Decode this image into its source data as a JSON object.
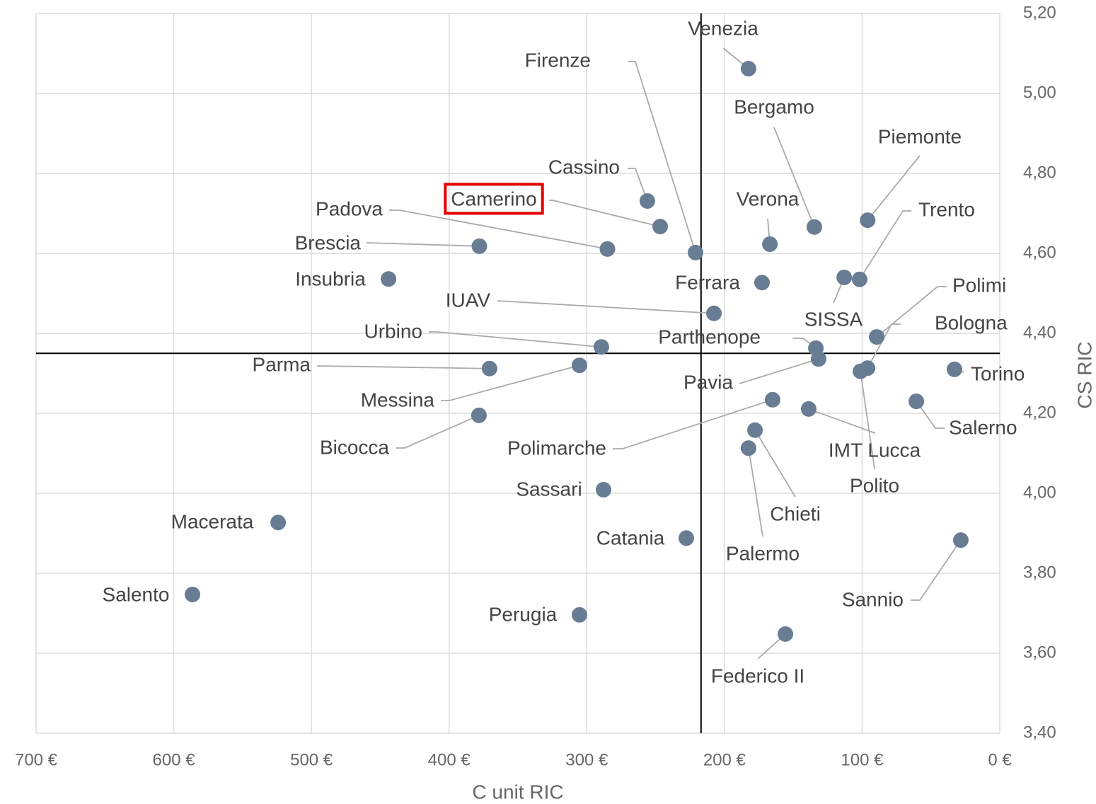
{
  "chart_data": {
    "type": "scatter",
    "x_label": "C unit RIC",
    "y_label": "CS RIC",
    "labels": [
      "Venezia",
      "Firenze",
      "Bergamo",
      "Piemonte",
      "Cassino",
      "Camerino",
      "Verona",
      "Trento",
      "Padova",
      "Brescia",
      "Insubria",
      "Ferrara",
      "SISSA",
      "Polimi",
      "Bologna",
      "IUAV",
      "Urbino",
      "Parthenope",
      "Pavia",
      "Torino",
      "Parma",
      "Messina",
      "Polito",
      "Bicocca",
      "Polimarche",
      "IMT Lucca",
      "Salerno",
      "Chieti",
      "Palermo",
      "Sassari",
      "Macerata",
      "Catania",
      "Sannio",
      "Salento",
      "Perugia",
      "Federico II"
    ],
    "x": [
      182.5,
      221,
      134.7,
      96,
      256,
      246.7,
      167,
      101.8,
      285,
      378,
      444,
      172.7,
      113,
      89.4,
      96.1,
      207.6,
      289.4,
      133.6,
      131.6,
      32.9,
      370.6,
      305.3,
      101.2,
      378.3,
      165,
      138.8,
      60.6,
      177.8,
      182.5,
      287.8,
      524.2,
      227.7,
      28.3,
      586.4,
      305.3,
      155.7
    ],
    "values": [
      5.062,
      4.602,
      4.666,
      4.683,
      4.731,
      4.667,
      4.623,
      4.535,
      4.611,
      4.618,
      4.536,
      4.527,
      4.54,
      4.391,
      4.313,
      4.45,
      4.366,
      4.363,
      4.336,
      4.31,
      4.312,
      4.32,
      4.305,
      4.195,
      4.234,
      4.211,
      4.23,
      4.158,
      4.113,
      4.009,
      3.927,
      3.888,
      3.883,
      3.747,
      3.696,
      3.648
    ],
    "color": "#687d94",
    "highlight_index": 5,
    "highlight_color": "#e30000",
    "xlim": [
      700,
      0
    ],
    "xticks": [
      {
        "value": 700,
        "label": "700 €"
      },
      {
        "value": 600,
        "label": "600 €"
      },
      {
        "value": 500,
        "label": "500 €"
      },
      {
        "value": 400,
        "label": "400 €"
      },
      {
        "value": 300,
        "label": "300 €"
      },
      {
        "value": 200,
        "label": "200 €"
      },
      {
        "value": 100,
        "label": "100 €"
      },
      {
        "value": 0,
        "label": "0 €"
      }
    ],
    "ylim": [
      3.4,
      5.2
    ],
    "yticks": [
      {
        "value": 3.4,
        "label": "3,40"
      },
      {
        "value": 3.6,
        "label": "3,60"
      },
      {
        "value": 3.8,
        "label": "3,80"
      },
      {
        "value": 4.0,
        "label": "4,00"
      },
      {
        "value": 4.2,
        "label": "4,20"
      },
      {
        "value": 4.4,
        "label": "4,40"
      },
      {
        "value": 4.6,
        "label": "4,60"
      },
      {
        "value": 4.8,
        "label": "4,80"
      },
      {
        "value": 5.0,
        "label": "5,00"
      },
      {
        "value": 5.2,
        "label": "5,20"
      }
    ],
    "crosshair": {
      "x": 217,
      "y": 4.35
    },
    "grid": true
  }
}
